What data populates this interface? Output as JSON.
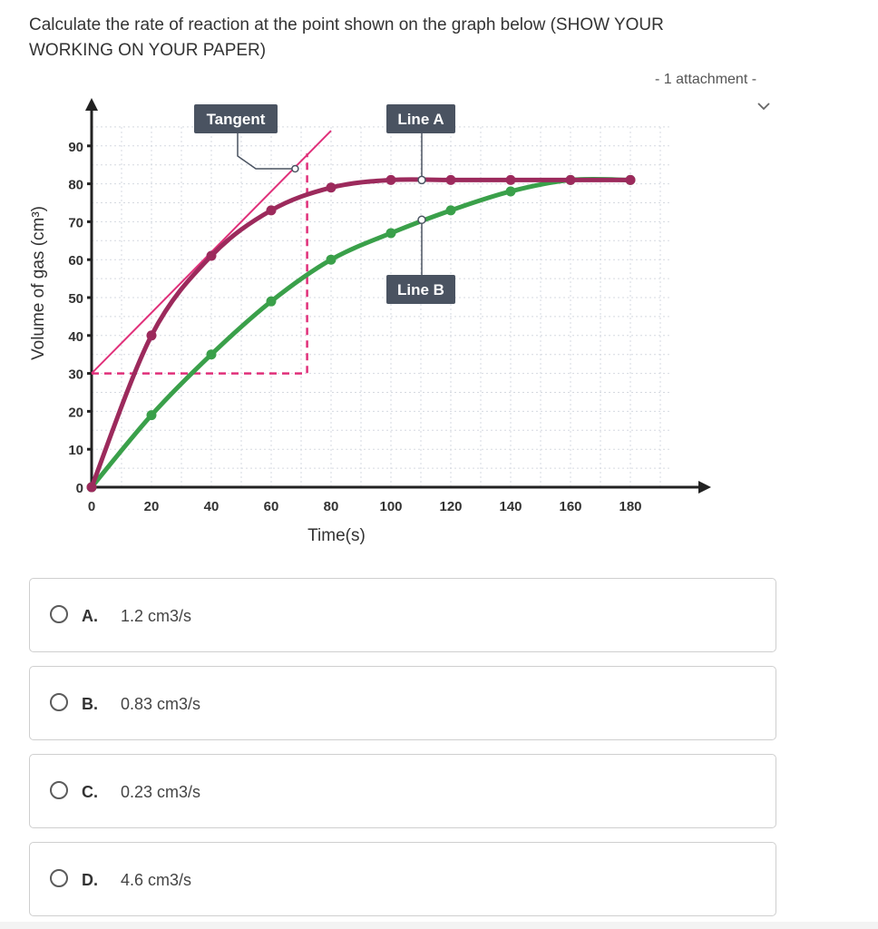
{
  "question": {
    "line1": "Calculate the rate of reaction at the point shown on the graph below (SHOW YOUR",
    "line2": "WORKING ON YOUR PAPER)"
  },
  "attachments": {
    "label": "- 1 attachment -",
    "chevron_icon": "chevron-down-icon"
  },
  "colors": {
    "line_a": "#9c2a5c",
    "line_b": "#3aa04a",
    "tangent": "#e0307a",
    "grid": "#d5d9e0",
    "callout": "#4a5361"
  },
  "chart_data": {
    "type": "line",
    "xlabel": "Time(s)",
    "ylabel": "Volume of gas (cm³)",
    "x_ticks": [
      0,
      20,
      40,
      60,
      80,
      100,
      120,
      140,
      160,
      180
    ],
    "y_ticks": [
      0,
      10,
      20,
      30,
      40,
      50,
      60,
      70,
      80,
      90
    ],
    "xlim": [
      0,
      190
    ],
    "ylim": [
      0,
      95
    ],
    "grid": true,
    "series": [
      {
        "name": "Line A",
        "x": [
          0,
          20,
          40,
          60,
          80,
          100,
          120,
          140,
          160,
          180
        ],
        "y": [
          0,
          40,
          61,
          73,
          79,
          81,
          81,
          81,
          81,
          81
        ]
      },
      {
        "name": "Line B",
        "x": [
          0,
          20,
          40,
          60,
          80,
          100,
          120,
          140,
          160,
          180
        ],
        "y": [
          0,
          19,
          35,
          49,
          60,
          67,
          73,
          78,
          81,
          81
        ]
      }
    ],
    "tangent": {
      "label": "Tangent",
      "x": [
        0,
        80
      ],
      "y": [
        30,
        94
      ]
    },
    "tangent_triangle": {
      "x0": 0,
      "x1": 72,
      "y0": 30,
      "y1": 88
    },
    "annotations": [
      "Tangent",
      "Line A",
      "Line B"
    ]
  },
  "options": [
    {
      "letter": "A.",
      "text": "1.2 cm3/s"
    },
    {
      "letter": "B.",
      "text": "0.83 cm3/s"
    },
    {
      "letter": "C.",
      "text": "0.23 cm3/s"
    },
    {
      "letter": "D.",
      "text": "4.6 cm3/s"
    }
  ]
}
